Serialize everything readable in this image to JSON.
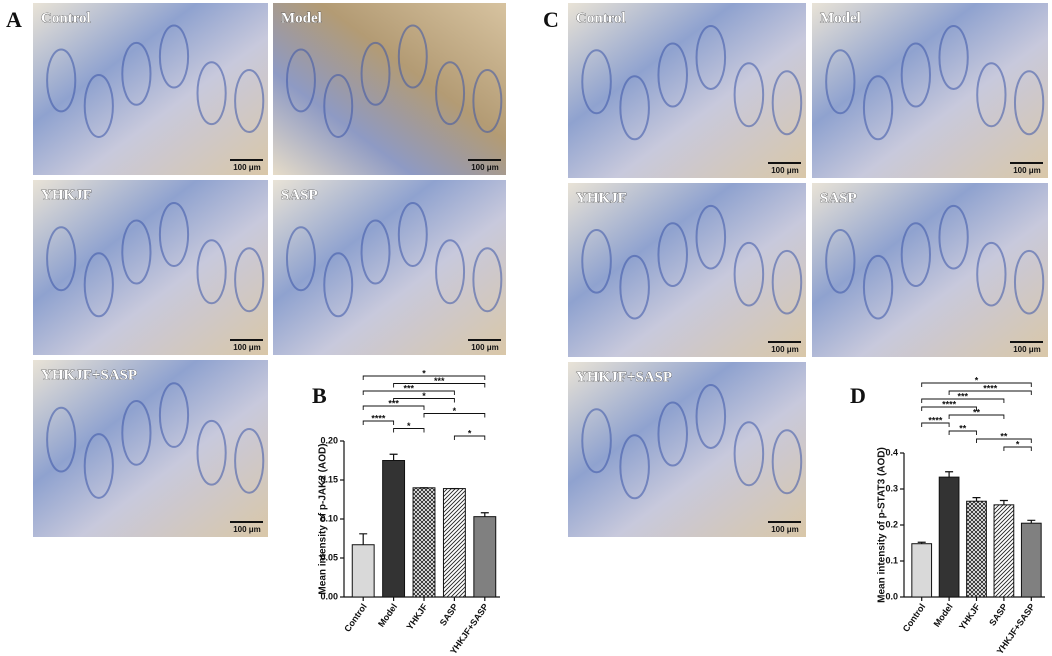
{
  "panels": [
    {
      "label": "A",
      "images": [
        {
          "label": "Control",
          "scale": "100 μm"
        },
        {
          "label": "Model",
          "scale": "100 μm"
        },
        {
          "label": "YHKJF",
          "scale": "100 μm"
        },
        {
          "label": "SASP",
          "scale": "100 μm"
        },
        {
          "label": "YHKJF+SASP",
          "scale": "100 μm"
        }
      ]
    },
    {
      "label": "C",
      "images": [
        {
          "label": "Control",
          "scale": "100 μm"
        },
        {
          "label": "Model",
          "scale": "100 μm"
        },
        {
          "label": "YHKJF",
          "scale": "100 μm"
        },
        {
          "label": "SASP",
          "scale": "100 μm"
        },
        {
          "label": "YHKJF+SASP",
          "scale": "100 μm"
        }
      ]
    }
  ],
  "chart_data": [
    {
      "type": "bar",
      "panel_label": "B",
      "y_label": "Mean intensity of p-JAK2 (AOD)",
      "categories": [
        "Control",
        "Model",
        "YHKJF",
        "SASP",
        "YHKJF+SASP"
      ],
      "values": [
        0.067,
        0.175,
        0.14,
        0.139,
        0.103
      ],
      "errors": [
        0.014,
        0.008,
        0,
        0,
        0.005
      ],
      "fills": [
        "#d9d9d9",
        "#333333",
        "crosshatch",
        "diagonal",
        "#808080"
      ],
      "ylim": [
        0,
        0.2
      ],
      "yticks": [
        {
          "value": 0,
          "label": "0.00"
        },
        {
          "value": 0.05,
          "label": "0.05"
        },
        {
          "value": 0.1,
          "label": "0.10"
        },
        {
          "value": 0.15,
          "label": "0.15"
        },
        {
          "value": 0.2,
          "label": "0.20"
        }
      ],
      "comparisons": [
        {
          "from": 0,
          "to": 4,
          "label": "*"
        },
        {
          "from": 1,
          "to": 4,
          "label": "***"
        },
        {
          "from": 0,
          "to": 3,
          "label": "***"
        },
        {
          "from": 1,
          "to": 3,
          "label": "*"
        },
        {
          "from": 0,
          "to": 2,
          "label": "***"
        },
        {
          "from": 2,
          "to": 4,
          "label": "*"
        },
        {
          "from": 0,
          "to": 1,
          "label": "****"
        },
        {
          "from": 1,
          "to": 2,
          "label": "*"
        },
        {
          "from": 3,
          "to": 4,
          "label": "*"
        }
      ]
    },
    {
      "type": "bar",
      "panel_label": "D",
      "y_label": "Mean intensity of p-STAT3 (AOD)",
      "categories": [
        "Control",
        "Model",
        "YHKJF",
        "SASP",
        "YHKJF+SASP"
      ],
      "values": [
        0.148,
        0.333,
        0.266,
        0.256,
        0.205
      ],
      "errors": [
        0.004,
        0.015,
        0.01,
        0.012,
        0.008
      ],
      "fills": [
        "#d9d9d9",
        "#333333",
        "crosshatch",
        "diagonal",
        "#808080"
      ],
      "ylim": [
        0,
        0.4
      ],
      "yticks": [
        {
          "value": 0,
          "label": "0.0"
        },
        {
          "value": 0.1,
          "label": "0.1"
        },
        {
          "value": 0.2,
          "label": "0.2"
        },
        {
          "value": 0.3,
          "label": "0.3"
        },
        {
          "value": 0.4,
          "label": "0.4"
        }
      ],
      "comparisons": [
        {
          "from": 0,
          "to": 4,
          "label": "*"
        },
        {
          "from": 1,
          "to": 4,
          "label": "****"
        },
        {
          "from": 0,
          "to": 3,
          "label": "***"
        },
        {
          "from": 0,
          "to": 2,
          "label": "****"
        },
        {
          "from": 1,
          "to": 3,
          "label": "**"
        },
        {
          "from": 0,
          "to": 1,
          "label": "****"
        },
        {
          "from": 1,
          "to": 2,
          "label": "**"
        },
        {
          "from": 2,
          "to": 4,
          "label": "**"
        },
        {
          "from": 3,
          "to": 4,
          "label": "*"
        }
      ]
    }
  ]
}
